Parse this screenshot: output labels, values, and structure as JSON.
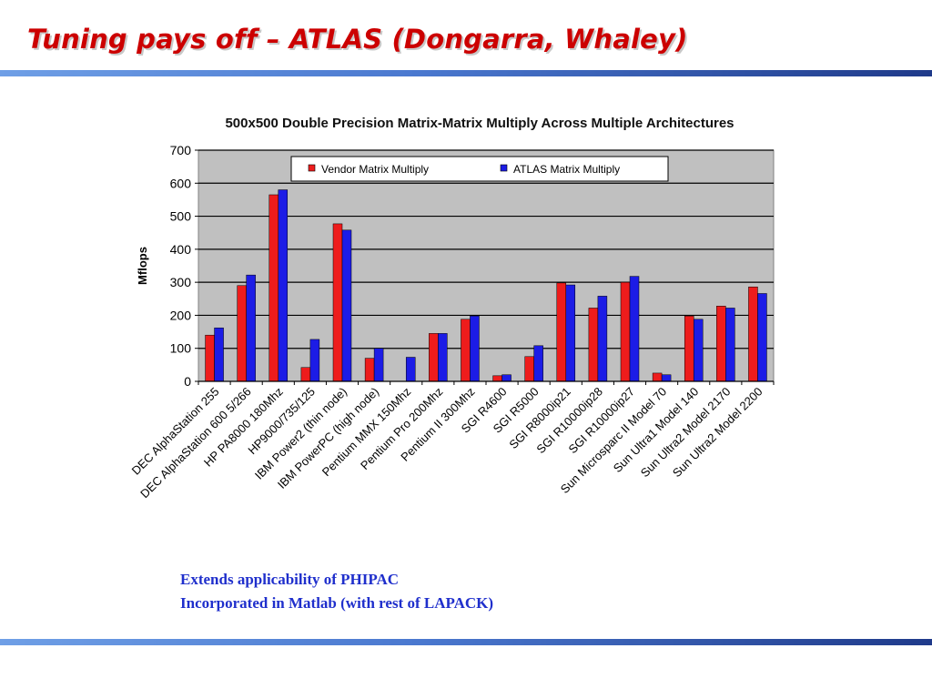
{
  "slide": {
    "title": "Tuning pays off – ATLAS (Dongarra, Whaley)",
    "notes": [
      "Extends applicability of PHIPAC",
      "Incorporated in Matlab (with rest of LAPACK)"
    ]
  },
  "colors": {
    "vendor": "#ee1c1c",
    "atlas": "#1c1ce6",
    "plot_bg": "#c0c0c0",
    "title": "#cc0000",
    "notes": "#1f2fcc"
  },
  "chart_data": {
    "type": "bar",
    "title": "500x500 Double Precision Matrix-Matrix Multiply Across Multiple Architectures",
    "xlabel": "",
    "ylabel": "Mflops",
    "ylim": [
      0,
      700
    ],
    "yticks": [
      0,
      100,
      200,
      300,
      400,
      500,
      600,
      700
    ],
    "grid": true,
    "legend_position": "top-center",
    "categories": [
      "DEC AlphaStation 255",
      "DEC AlphaStation 600 5/266",
      "HP PA8000 180Mhz",
      "HP9000/735/125",
      "IBM Power2 (thin node)",
      "IBM PowerPC (high node)",
      "Pentium MMX 150Mhz",
      "Pentium Pro 200Mhz",
      "Pentium II 300Mhz",
      "SGI R4600",
      "SGI R5000",
      "SGI R8000ip21",
      "SGI R10000ip28",
      "SGI R10000ip27",
      "Sun Microsparc II Model 70",
      "Sun Ultra1 Model 140",
      "Sun Ultra2 Model 2170",
      "Sun Ultra2 Model 2200"
    ],
    "series": [
      {
        "name": "Vendor Matrix Multiply",
        "values": [
          140,
          290,
          565,
          42,
          477,
          70,
          0,
          145,
          188,
          17,
          75,
          298,
          222,
          300,
          25,
          198,
          228,
          286
        ]
      },
      {
        "name": "ATLAS Matrix Multiply",
        "values": [
          162,
          322,
          580,
          127,
          458,
          100,
          73,
          145,
          198,
          20,
          108,
          292,
          258,
          318,
          20,
          188,
          222,
          266
        ]
      }
    ]
  }
}
